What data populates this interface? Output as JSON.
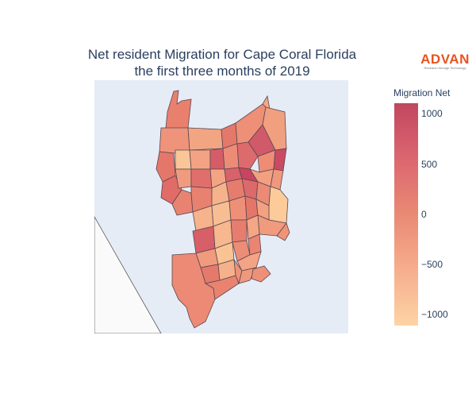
{
  "title": {
    "line1": "Net resident Migration for Cape Coral Florida",
    "line2": "the first three months of 2019"
  },
  "logo": {
    "brand": "ADVAN",
    "tagline": "Research through Technology"
  },
  "colorbar": {
    "title": "Migration Net",
    "ticks": [
      "1000",
      "500",
      "0",
      "−500",
      "−1000"
    ],
    "colors": [
      "#c0475f",
      "#dc6670",
      "#e98a74",
      "#f5a98b",
      "#fdd4a4"
    ]
  },
  "map": {
    "land_color": "#e5ecf6",
    "boundary_color": "#5a4650"
  }
}
